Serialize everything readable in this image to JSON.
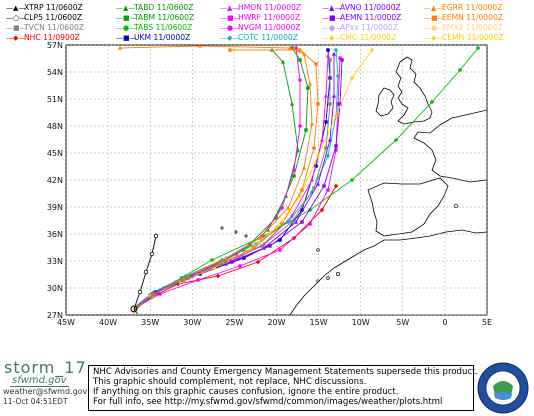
{
  "legend": [
    {
      "symbol": "▲",
      "color": "#000000",
      "label": "XTRP 11/0600Z"
    },
    {
      "symbol": "○",
      "color": "#000000",
      "label": "CLP5 11/0600Z"
    },
    {
      "symbol": "■",
      "color": "#808080",
      "label": "TVCN 11/0600Z"
    },
    {
      "symbol": "◆",
      "color": "#ff0000",
      "label": "NHC 11/0900Z"
    },
    {
      "symbol": "▲",
      "color": "#00a000",
      "label": "TABD 11/0600Z"
    },
    {
      "symbol": "■",
      "color": "#00a000",
      "label": "TABM 11/0600Z"
    },
    {
      "symbol": "●",
      "color": "#00c000",
      "label": "TABS 11/0600Z"
    },
    {
      "symbol": "■",
      "color": "#0000cc",
      "label": "UKM 11/0000Z"
    },
    {
      "symbol": "▲",
      "color": "#ff00ff",
      "label": "HMON 11/0000Z"
    },
    {
      "symbol": "■",
      "color": "#ff00ff",
      "label": "HWRF 11/0000Z"
    },
    {
      "symbol": "●",
      "color": "#ff00ff",
      "label": "NVGM 11/0000Z"
    },
    {
      "symbol": "◆",
      "color": "#00b4b4",
      "label": "COTC 11/0000Z"
    },
    {
      "symbol": "▲",
      "color": "#8000ff",
      "label": "AVNO 11/0000Z"
    },
    {
      "symbol": "■",
      "color": "#8000ff",
      "label": "AEMN 11/0000Z"
    },
    {
      "symbol": "●",
      "color": "#c0a0ff",
      "label": "APxx 11/0000Z"
    },
    {
      "symbol": "◆",
      "color": "#ffd200",
      "label": "CMC 11/0000Z"
    },
    {
      "symbol": "▲",
      "color": "#ff8000",
      "label": "EGRR 11/0000Z"
    },
    {
      "symbol": "■",
      "color": "#ff8000",
      "label": "EEMN 11/0000Z"
    },
    {
      "symbol": "●",
      "color": "#ffd280",
      "label": "EMX2 11/0000Z"
    },
    {
      "symbol": "◆",
      "color": "#ffd200",
      "label": "CEMN 11/0000Z"
    }
  ],
  "map": {
    "lat_labels": [
      "57N",
      "54N",
      "51N",
      "48N",
      "45N",
      "42N",
      "39N",
      "36N",
      "33N",
      "30N",
      "27N"
    ],
    "lon_labels": [
      "45W",
      "40W",
      "35W",
      "30W",
      "25W",
      "20W",
      "15W",
      "10W",
      "5W",
      "0",
      "5E"
    ],
    "lat_values": [
      57,
      54,
      51,
      48,
      45,
      42,
      39,
      36,
      33,
      30,
      27
    ],
    "lon_values": [
      -45,
      -40,
      -35,
      -30,
      -25,
      -20,
      -15,
      -10,
      -5,
      0,
      5
    ],
    "extent": {
      "lon": [
        -45,
        5
      ],
      "lat": [
        27,
        57
      ]
    },
    "track_colors": {
      "nhc": "#ff0000",
      "tabd": "#00a000",
      "tabm": "#00a000",
      "tabs": "#00c000",
      "ukm": "#0000cc",
      "hmon": "#ff00ff",
      "hwrf": "#ff00ff",
      "nvgm": "#ff00ff",
      "cotc": "#00b4b4",
      "avno": "#8000ff",
      "aemn": "#8000ff",
      "cmc": "#ffd200",
      "egrr": "#ff8000",
      "eemn": "#ff8000",
      "tvcn": "#808080",
      "xtrp": "#000000",
      "clp5": "#000000"
    }
  },
  "storm_name": "storm_17",
  "logo_text": "sfwmd.gov",
  "credit": "weather@sfwmd.gov",
  "timestamp": "11-Oct 04:51EDT",
  "notice": {
    "line1": "NHC Advisories and County Emergency Management Statements supersede this product.",
    "line2": "This graphic should complement, not replace, NHC discussions.",
    "line3": "If anything on this graphic causes confusion, ignore the entire product.",
    "line4": "For full info, see  http://my.sfwmd.gov/sfwmd/common/images/weather/plots.html"
  },
  "seal_text": "SOUTH FLORIDA WATER MANAGEMENT DISTRICT"
}
